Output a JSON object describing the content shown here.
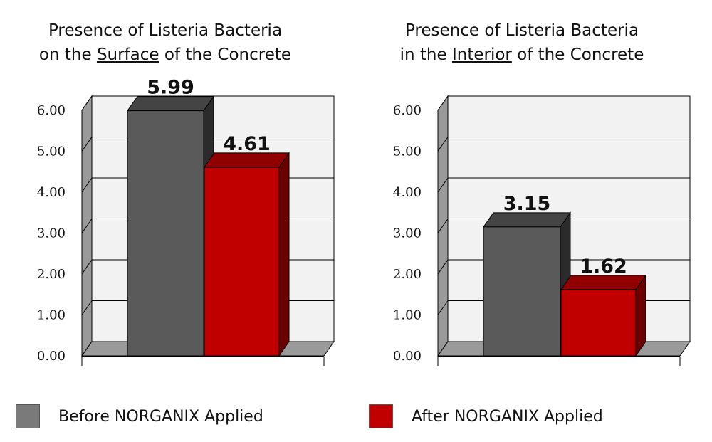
{
  "colors": {
    "before": "#5a5a5a",
    "before_side": "#2b2b2b",
    "before_top": "#444444",
    "after": "#c00000",
    "after_side": "#6a0000",
    "after_top": "#900000",
    "plot_back": "#f2f2f2",
    "floor": "#9a9a9a",
    "left_wall": "#9a9a9a",
    "grid": "#000000"
  },
  "chart_data": [
    {
      "type": "bar",
      "title_lines": [
        {
          "parts": [
            {
              "text": "Presence of Listeria Bacteria",
              "underline": false
            }
          ]
        },
        {
          "parts": [
            {
              "text": "on the ",
              "underline": false
            },
            {
              "text": "Surface",
              "underline": true
            },
            {
              "text": " of the Concrete",
              "underline": false
            }
          ]
        }
      ],
      "ylim": [
        0,
        6
      ],
      "yticks": [
        "0.00",
        "1.00",
        "2.00",
        "3.00",
        "4.00",
        "5.00",
        "6.00"
      ],
      "series": [
        {
          "name": "Before NORGANIX Applied",
          "values": [
            5.99
          ],
          "labels": [
            "5.99"
          ]
        },
        {
          "name": "After NORGANIX Applied",
          "values": [
            4.61
          ],
          "labels": [
            "4.61"
          ]
        }
      ]
    },
    {
      "type": "bar",
      "title_lines": [
        {
          "parts": [
            {
              "text": "Presence of Listeria Bacteria",
              "underline": false
            }
          ]
        },
        {
          "parts": [
            {
              "text": "in the ",
              "underline": false
            },
            {
              "text": "Interior",
              "underline": true
            },
            {
              "text": " of the Concrete",
              "underline": false
            }
          ]
        }
      ],
      "ylim": [
        0,
        6
      ],
      "yticks": [
        "0.00",
        "1.00",
        "2.00",
        "3.00",
        "4.00",
        "5.00",
        "6.00"
      ],
      "series": [
        {
          "name": "Before NORGANIX Applied",
          "values": [
            3.15
          ],
          "labels": [
            "3.15"
          ]
        },
        {
          "name": "After NORGANIX Applied",
          "values": [
            1.62
          ],
          "labels": [
            "1.62"
          ]
        }
      ]
    }
  ],
  "legend": {
    "before_label": "Before NORGANIX Applied",
    "after_label": "After NORGANIX Applied"
  }
}
